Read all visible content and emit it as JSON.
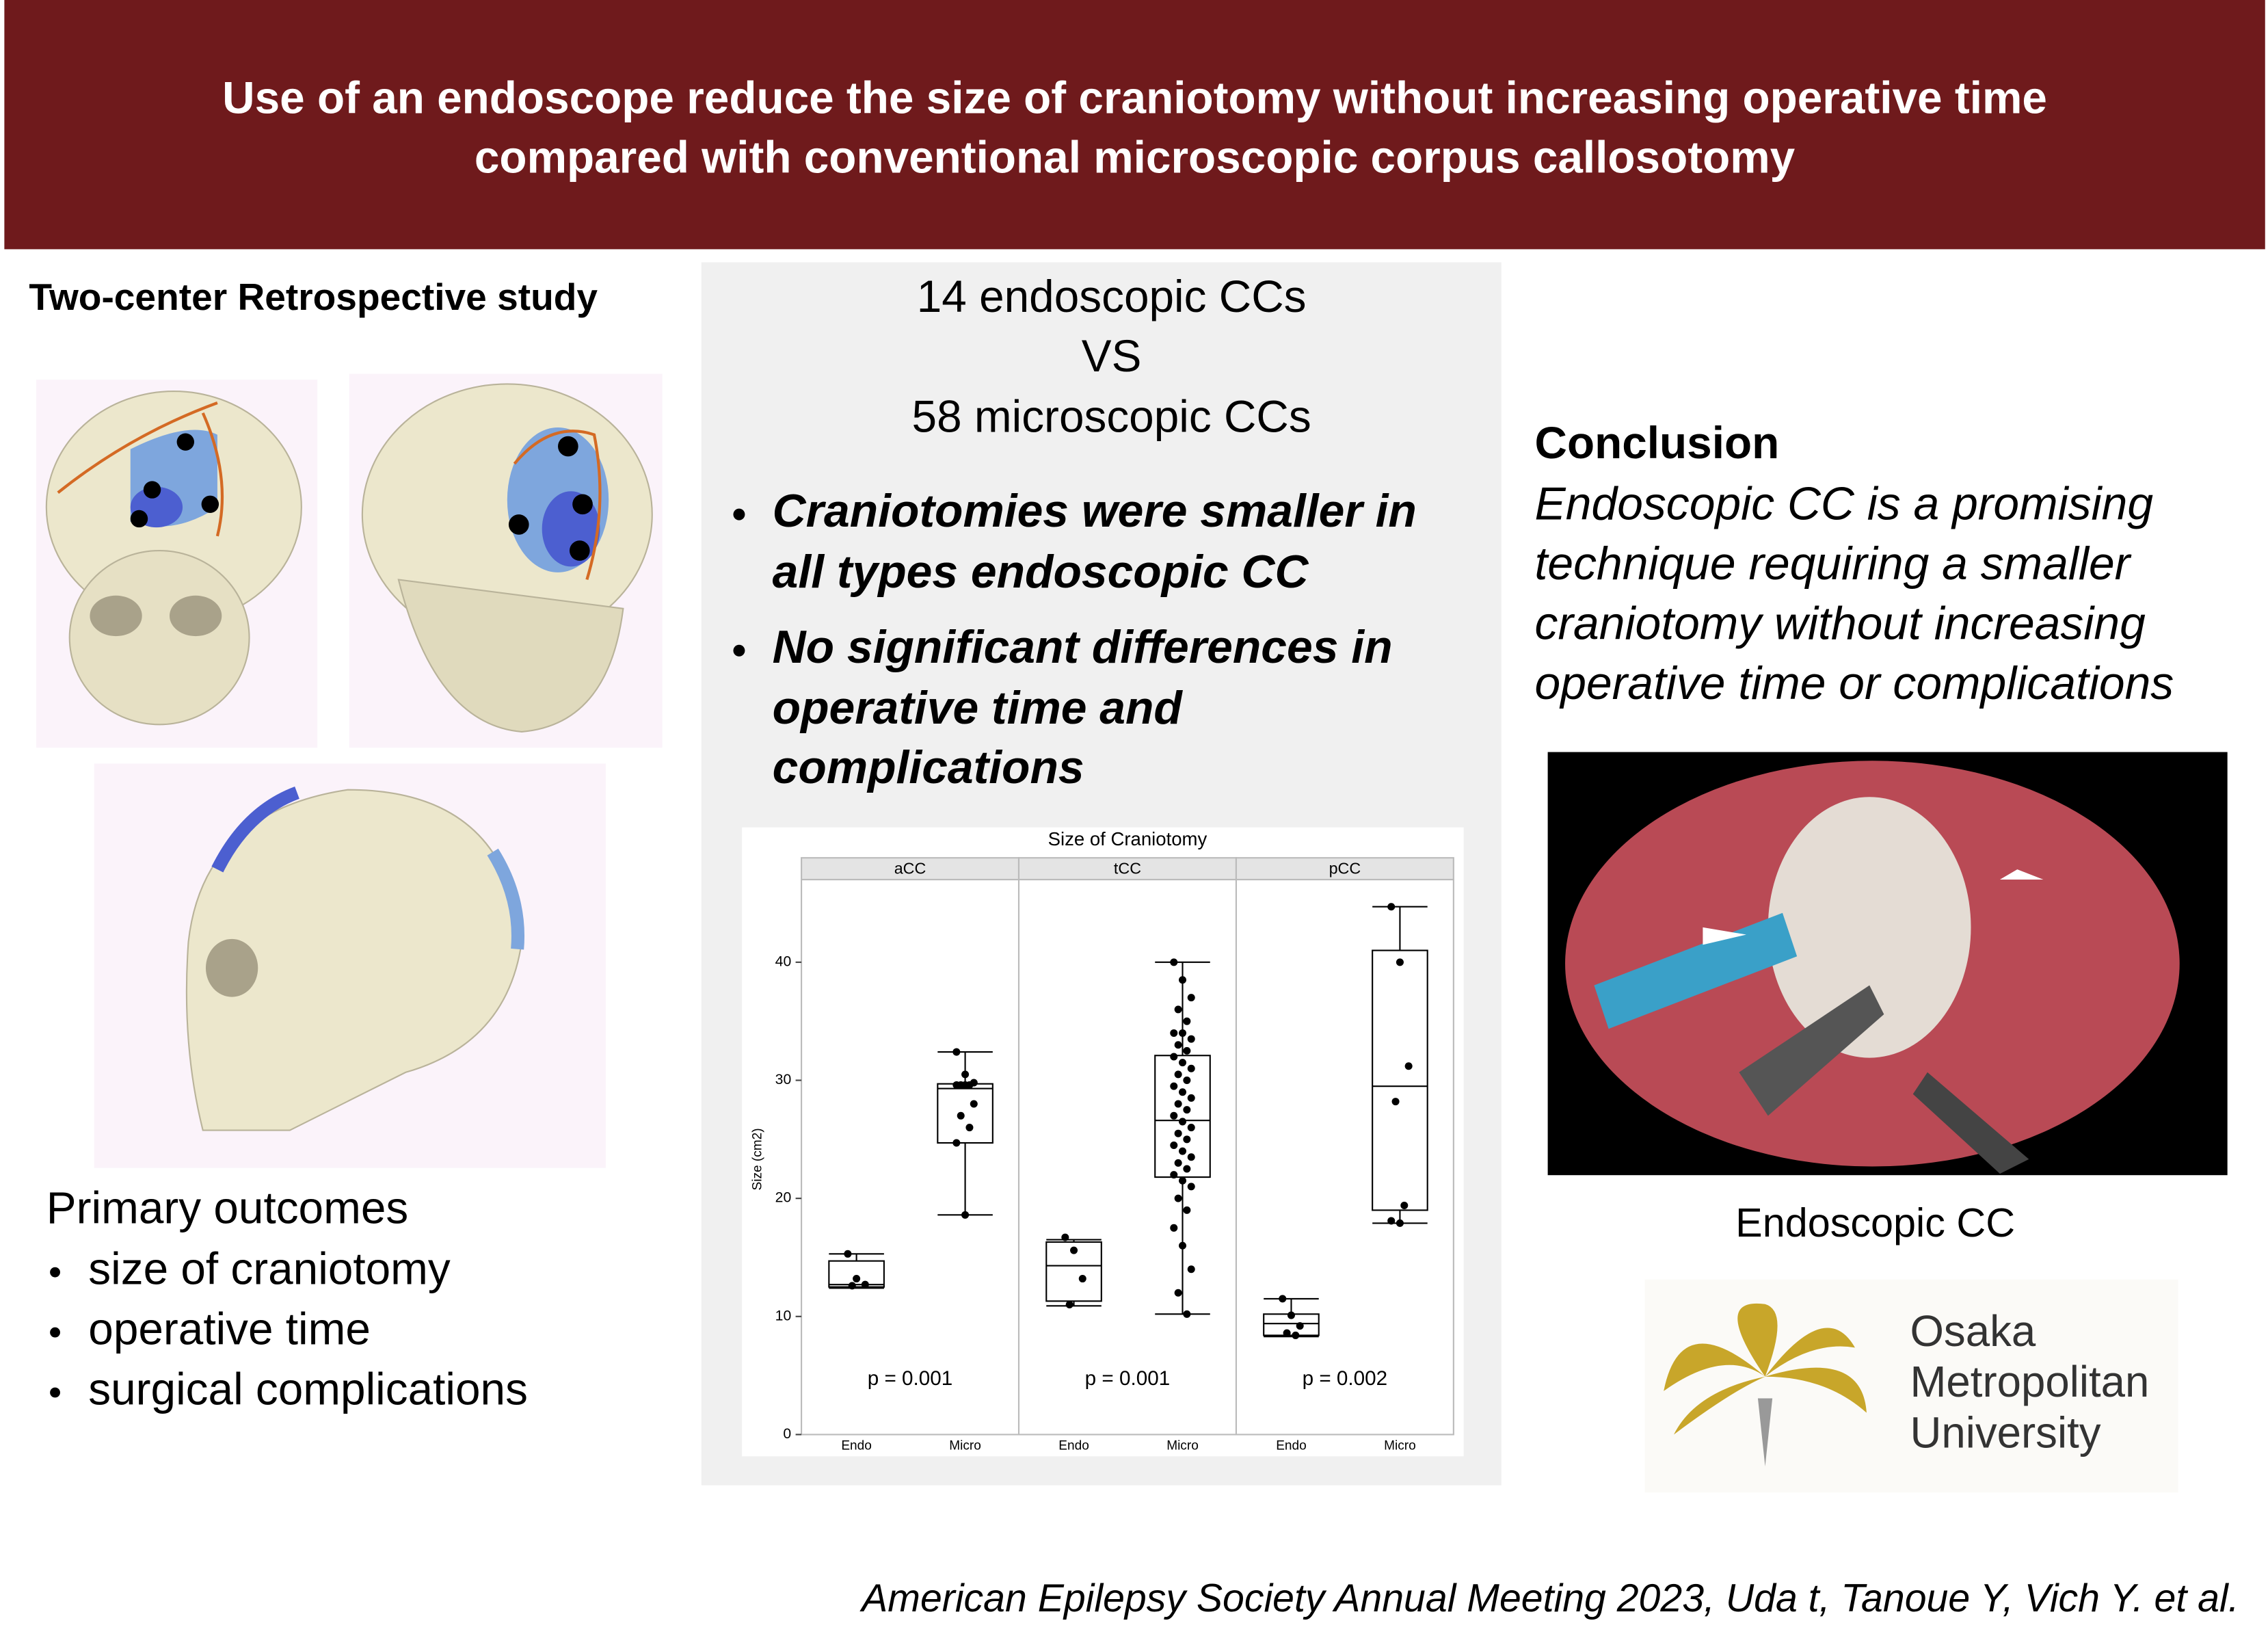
{
  "header": {
    "title_lines": [
      "Use of an endoscope reduce the size of craniotomy without increasing operative time",
      "compared with conventional microscopic corpus callosotomy"
    ]
  },
  "study": {
    "label": "Two-center Retrospective study"
  },
  "outcomes": {
    "heading": "Primary outcomes",
    "items": [
      "size of craniotomy",
      "operative time",
      "surgical complications"
    ]
  },
  "comparison": {
    "lines": [
      "14 endoscopic CCs",
      "VS",
      "58 microscopic CCs"
    ]
  },
  "findings": [
    [
      "Craniotomies were smaller in",
      "all types endoscopic CC"
    ],
    [
      "No significant differences in",
      "operative time and",
      "complications"
    ]
  ],
  "conclusion": {
    "heading": "Conclusion",
    "lines": [
      "Endoscopic CC is a promising",
      "technique requiring a smaller",
      "craniotomy without increasing",
      "operative time or complications"
    ]
  },
  "image_caption": "Endoscopic CC",
  "logo": {
    "lines": [
      "Osaka",
      "Metropolitan",
      "University"
    ]
  },
  "citation": "American Epilepsy Society Annual Meeting 2023,  Uda t, Tanoue Y, Vich Y. et al.",
  "chart_data": {
    "type": "box",
    "title": "Size of Craniotomy",
    "y_label": "Size (cm2)",
    "categories": [
      "Endo",
      "Micro"
    ],
    "ylim": [
      0,
      47
    ],
    "yticks": [
      0,
      10,
      20,
      30,
      40
    ],
    "panels": [
      {
        "name": "aCC",
        "annotation": "p = 0.001",
        "boxes": [
          {
            "min": 12.4,
            "q1": 12.5,
            "median": 12.7,
            "q3": 14.7,
            "max": 15.3,
            "points": [
              15.3,
              13.2,
              12.7,
              12.6
            ]
          },
          {
            "min": 18.6,
            "q1": 24.7,
            "median": 29.3,
            "q3": 29.7,
            "max": 32.4,
            "points": [
              32.4,
              30.5,
              29.8,
              29.6,
              29.6,
              29.6,
              29.6,
              28,
              27,
              26,
              24.7,
              18.6
            ]
          }
        ]
      },
      {
        "name": "tCC",
        "annotation": "p = 0.001",
        "boxes": [
          {
            "min": 10.9,
            "q1": 11.3,
            "median": 14.3,
            "q3": 16.3,
            "max": 16.5,
            "points": [
              16.7,
              15.6,
              13.2,
              11
            ]
          },
          {
            "min": 10.2,
            "q1": 21.8,
            "median": 26.6,
            "q3": 32.1,
            "max": 40,
            "points": [
              40,
              38.5,
              37,
              36,
              35,
              34,
              34,
              33.5,
              33,
              32.5,
              32,
              31.5,
              31,
              30.5,
              30,
              29.5,
              29,
              28.5,
              28,
              27.5,
              27,
              26.5,
              26,
              25.5,
              25,
              24.5,
              24,
              23.5,
              23,
              22.5,
              22,
              21.5,
              21,
              20,
              19,
              17.5,
              16,
              14,
              12,
              10.2
            ]
          }
        ]
      },
      {
        "name": "pCC",
        "annotation": "p = 0.002",
        "boxes": [
          {
            "min": 8.3,
            "q1": 8.4,
            "median": 9.4,
            "q3": 10.2,
            "max": 11.5,
            "points": [
              11.5,
              10.1,
              9.2,
              8.6,
              8.4
            ]
          },
          {
            "min": 17.9,
            "q1": 19,
            "median": 29.5,
            "q3": 41,
            "max": 44.7,
            "points": [
              44.7,
              40,
              31.2,
              28.2,
              19.4,
              18.1,
              17.9
            ]
          }
        ]
      }
    ]
  }
}
